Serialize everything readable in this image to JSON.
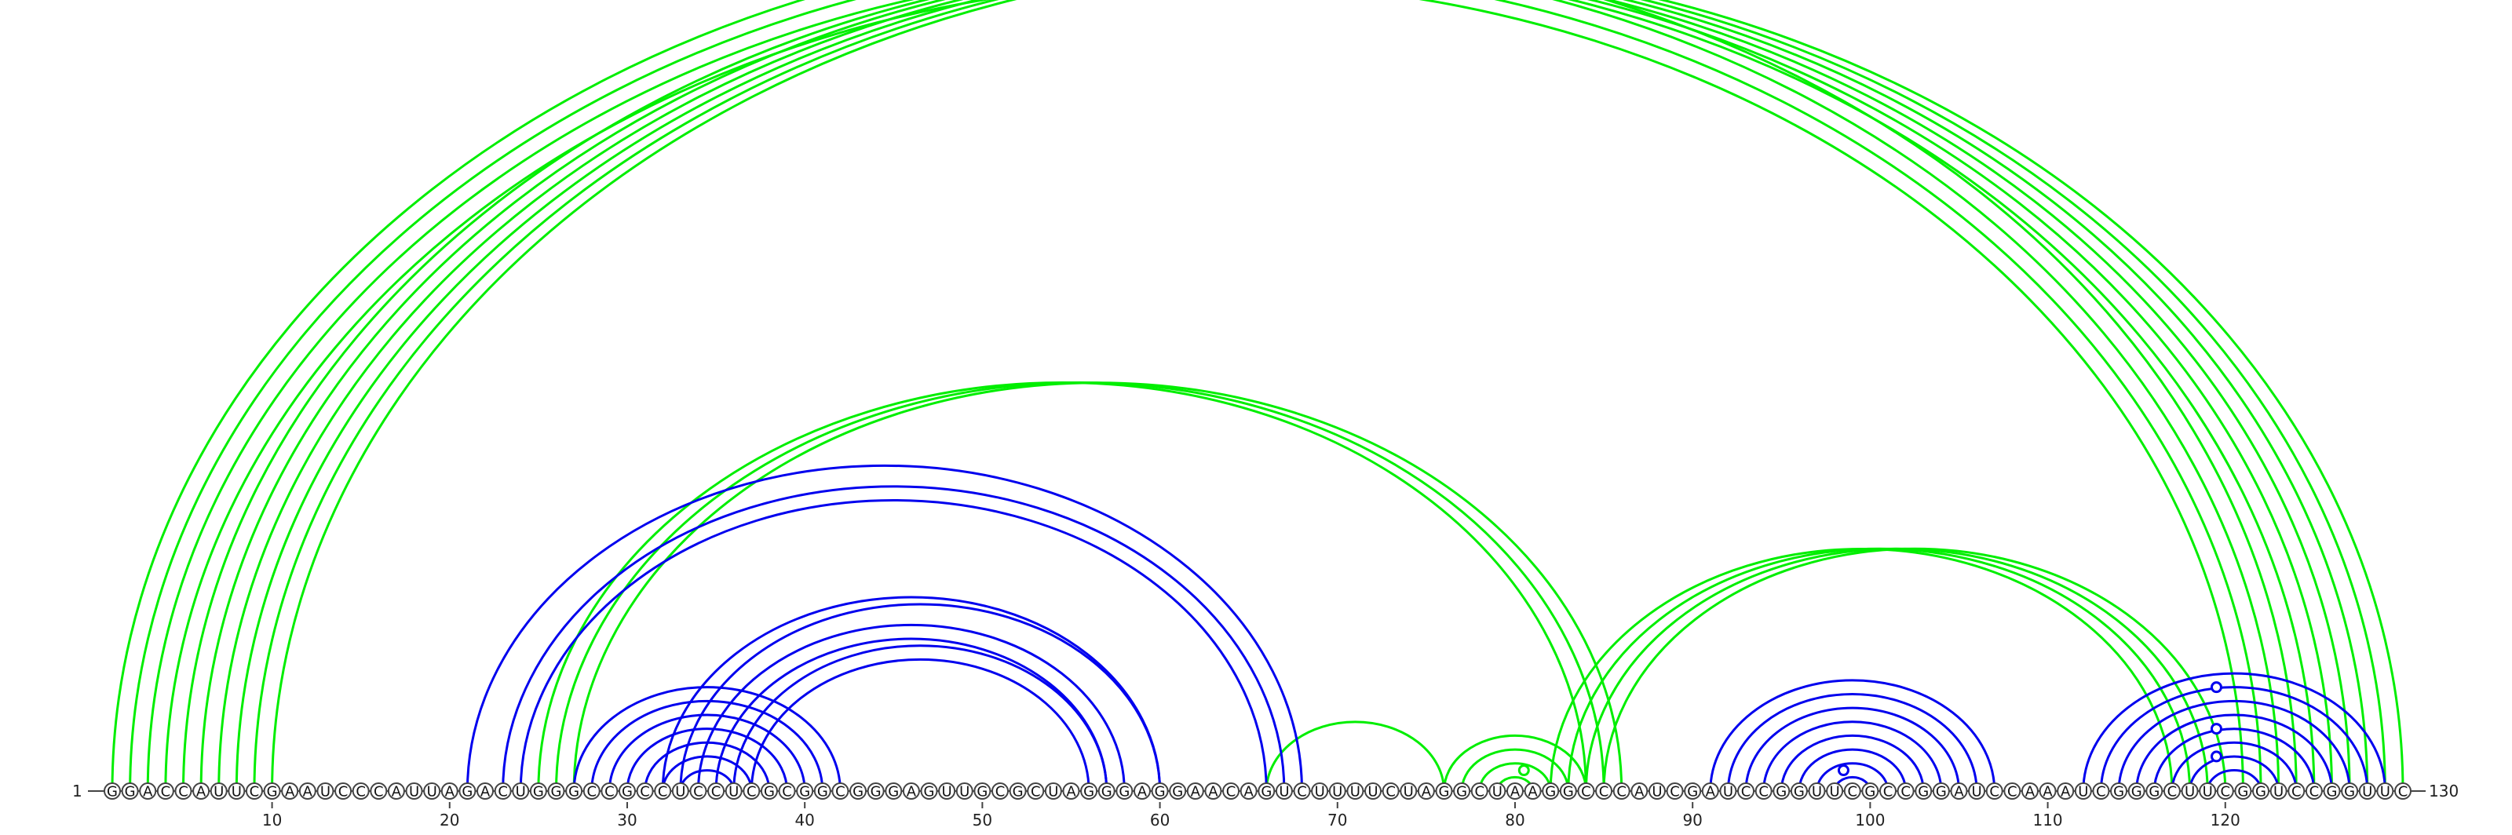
{
  "sequence": "GGACCAUUCGAAUCCCAUUAGACUGGGCCGCCUCCUCGCGGCGGGAGUUGCGCUAGGGAGGAACAGUCUUUUCUAGGCUAAGGCCCAUCGAUCCGGUUCGCCGGAUCCAAAUCGGGCUUCGGUCCGGUUC",
  "start_label": "1",
  "end_label": "130",
  "ticks": [
    10,
    20,
    30,
    40,
    50,
    60,
    70,
    80,
    90,
    100,
    110,
    120
  ],
  "colors": {
    "blue": "#0000ee",
    "green": "#00ee00"
  },
  "chart_data": {
    "type": "arc-diagram",
    "sequence_length": 130,
    "pairs_blue": [
      [
        21,
        68
      ],
      [
        23,
        67
      ],
      [
        24,
        66
      ],
      [
        27,
        42
      ],
      [
        28,
        41
      ],
      [
        29,
        40
      ],
      [
        30,
        39
      ],
      [
        31,
        38
      ],
      [
        32,
        37
      ],
      [
        33,
        36
      ],
      [
        32,
        60
      ],
      [
        33,
        60
      ],
      [
        34,
        58
      ],
      [
        35,
        57
      ],
      [
        36,
        57
      ],
      [
        37,
        56
      ],
      [
        91,
        107
      ],
      [
        92,
        106
      ],
      [
        93,
        105
      ],
      [
        94,
        104
      ],
      [
        95,
        103
      ],
      [
        96,
        102
      ],
      [
        97,
        101
      ],
      [
        98,
        100
      ],
      [
        112,
        129
      ],
      [
        113,
        128
      ],
      [
        114,
        127
      ],
      [
        115,
        126
      ],
      [
        116,
        125
      ],
      [
        117,
        124
      ],
      [
        118,
        123
      ],
      [
        119,
        122
      ]
    ],
    "pairs_green": [
      [
        1,
        124
      ],
      [
        2,
        123
      ],
      [
        3,
        122
      ],
      [
        4,
        121
      ],
      [
        5,
        125
      ],
      [
        6,
        126
      ],
      [
        7,
        127
      ],
      [
        8,
        128
      ],
      [
        9,
        129
      ],
      [
        10,
        130
      ],
      [
        25,
        84
      ],
      [
        26,
        85
      ],
      [
        27,
        86
      ],
      [
        66,
        76
      ],
      [
        76,
        84
      ],
      [
        77,
        83
      ],
      [
        78,
        82
      ],
      [
        79,
        81
      ],
      [
        82,
        117
      ],
      [
        83,
        118
      ],
      [
        84,
        119
      ],
      [
        85,
        120
      ]
    ],
    "markers": [
      {
        "x": 65.5,
        "color": "green",
        "arc": [
          1,
          130
        ]
      },
      {
        "x": 80.5,
        "color": "green",
        "arc": [
          79,
          82
        ]
      },
      {
        "x": 98.5,
        "color": "blue",
        "arc": [
          97,
          100
        ]
      },
      {
        "x": 119.5,
        "color": "blue",
        "arc": [
          117,
          122
        ]
      },
      {
        "x": 119.5,
        "color": "blue",
        "arc": [
          115,
          124
        ]
      },
      {
        "x": 119.5,
        "color": "blue",
        "arc": [
          112,
          127
        ]
      }
    ]
  }
}
